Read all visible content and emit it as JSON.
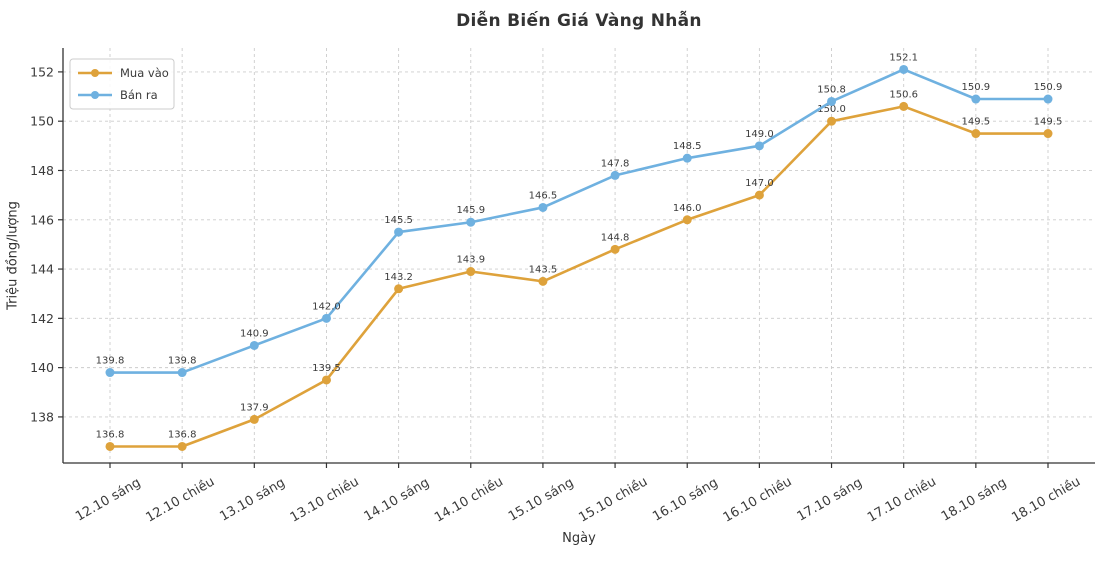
{
  "chart_data": {
    "type": "line",
    "title": "Diễn Biến Giá Vàng Nhẫn",
    "xlabel": "Ngày",
    "ylabel": "Triệu đồng/lượng",
    "categories": [
      "12.10 sáng",
      "12.10 chiều",
      "13.10 sáng",
      "13.10 chiều",
      "14.10 sáng",
      "14.10 chiều",
      "15.10 sáng",
      "15.10 chiều",
      "16.10 sáng",
      "16.10 chiều",
      "17.10 sáng",
      "17.10 chiều",
      "18.10 sáng",
      "18.10 chiều"
    ],
    "series": [
      {
        "name": "Mua vào",
        "color": "#DEA23B",
        "values": [
          136.8,
          136.8,
          137.9,
          139.5,
          143.2,
          143.9,
          143.5,
          144.8,
          146.0,
          147.0,
          150.0,
          150.6,
          149.5,
          149.5
        ]
      },
      {
        "name": "Bán ra",
        "color": "#6FB1E0",
        "values": [
          139.8,
          139.8,
          140.9,
          142.0,
          145.5,
          145.9,
          146.5,
          147.8,
          148.5,
          149.0,
          150.8,
          152.1,
          150.9,
          150.9
        ]
      }
    ],
    "yticks": [
      138,
      140,
      142,
      144,
      146,
      148,
      150,
      152
    ],
    "ylim": [
      136.13,
      152.97
    ],
    "grid": true,
    "legend_position": "upper-left",
    "value_labels": true,
    "x_tick_rotation": -30
  },
  "style": {
    "background": "#ffffff",
    "title_color": "#333333",
    "tick_label_color": "#3b3b3b",
    "grid_color": "#cccccc",
    "spine_color": "#333333",
    "value_label_color": "#3b3b3b",
    "legend_border_color": "#cccccc",
    "legend_text_color": "#3b3b3b"
  }
}
